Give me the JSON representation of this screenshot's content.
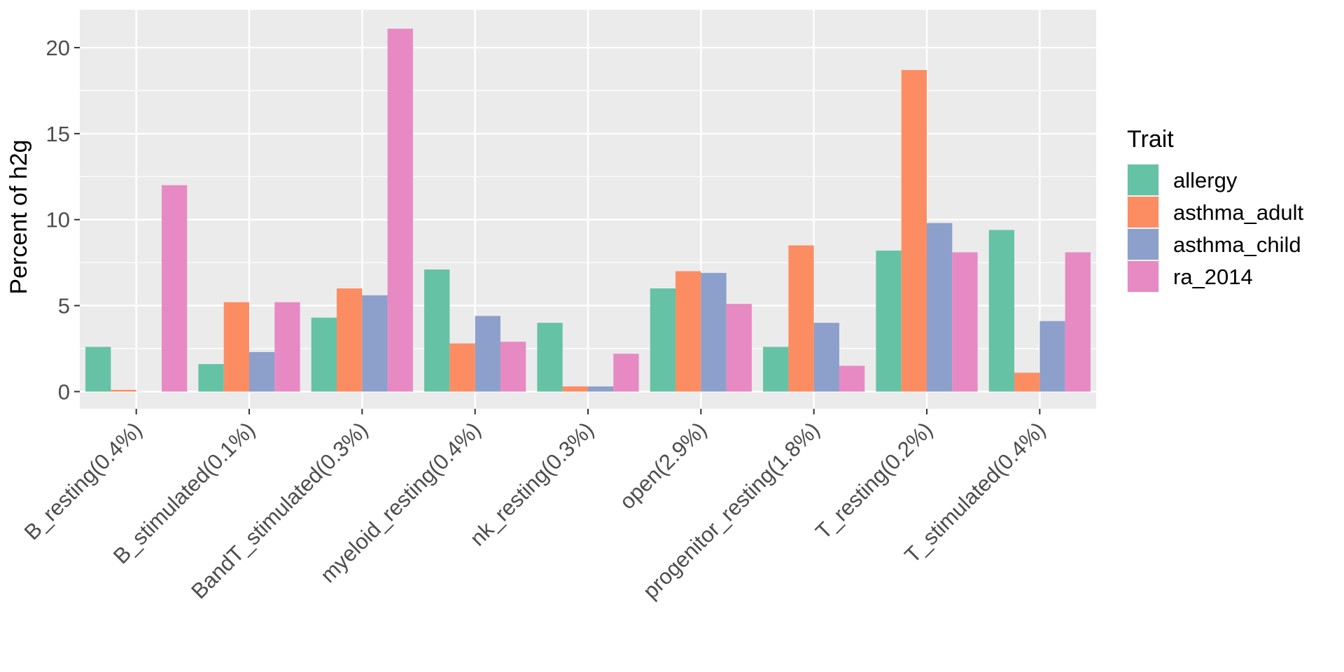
{
  "chart_data": {
    "type": "bar",
    "title": "",
    "xlabel": "",
    "ylabel": "Percent of h2g",
    "ylim": [
      -1,
      22.2
    ],
    "yticks": [
      0,
      5,
      10,
      15,
      20
    ],
    "grid": true,
    "legend_position": "right",
    "legend_title": "Trait",
    "categories": [
      "B_resting(0.4%)",
      "B_stimulated(0.1%)",
      "BandT_stimulated(0.3%)",
      "myeloid_resting(0.4%)",
      "nk_resting(0.3%)",
      "open(2.9%)",
      "progenitor_resting(1.8%)",
      "T_resting(0.2%)",
      "T_stimulated(0.4%)"
    ],
    "series": [
      {
        "name": "allergy",
        "color": "#66c2a5",
        "values": [
          2.6,
          1.6,
          4.3,
          7.1,
          4.0,
          6.0,
          2.6,
          8.2,
          9.4
        ]
      },
      {
        "name": "asthma_adult",
        "color": "#fc8d62",
        "values": [
          0.1,
          5.2,
          6.0,
          2.8,
          0.3,
          7.0,
          8.5,
          18.7,
          1.1
        ]
      },
      {
        "name": "asthma_child",
        "color": "#8da0cb",
        "values": [
          0.0,
          2.3,
          5.6,
          4.4,
          0.3,
          6.9,
          4.0,
          9.8,
          4.1
        ]
      },
      {
        "name": "ra_2014",
        "color": "#e78ac3",
        "values": [
          12.0,
          5.2,
          21.1,
          2.9,
          2.2,
          5.1,
          1.5,
          8.1,
          8.1
        ]
      }
    ]
  }
}
